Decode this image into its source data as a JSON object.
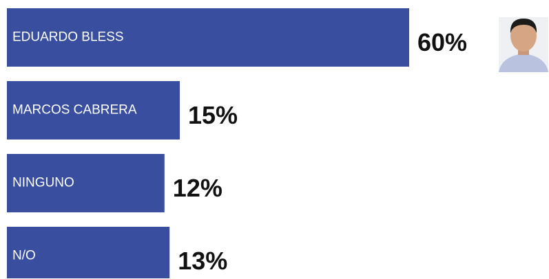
{
  "chart_data": {
    "type": "bar",
    "orientation": "horizontal",
    "categories": [
      "EDUARDO BLESS",
      "MARCOS CABRERA",
      "NINGUNO",
      "N/O"
    ],
    "values": [
      60,
      15,
      12,
      13
    ],
    "value_labels": [
      "60%",
      "15%",
      "12%",
      "13%"
    ],
    "color": "#3a4ea0"
  }
}
